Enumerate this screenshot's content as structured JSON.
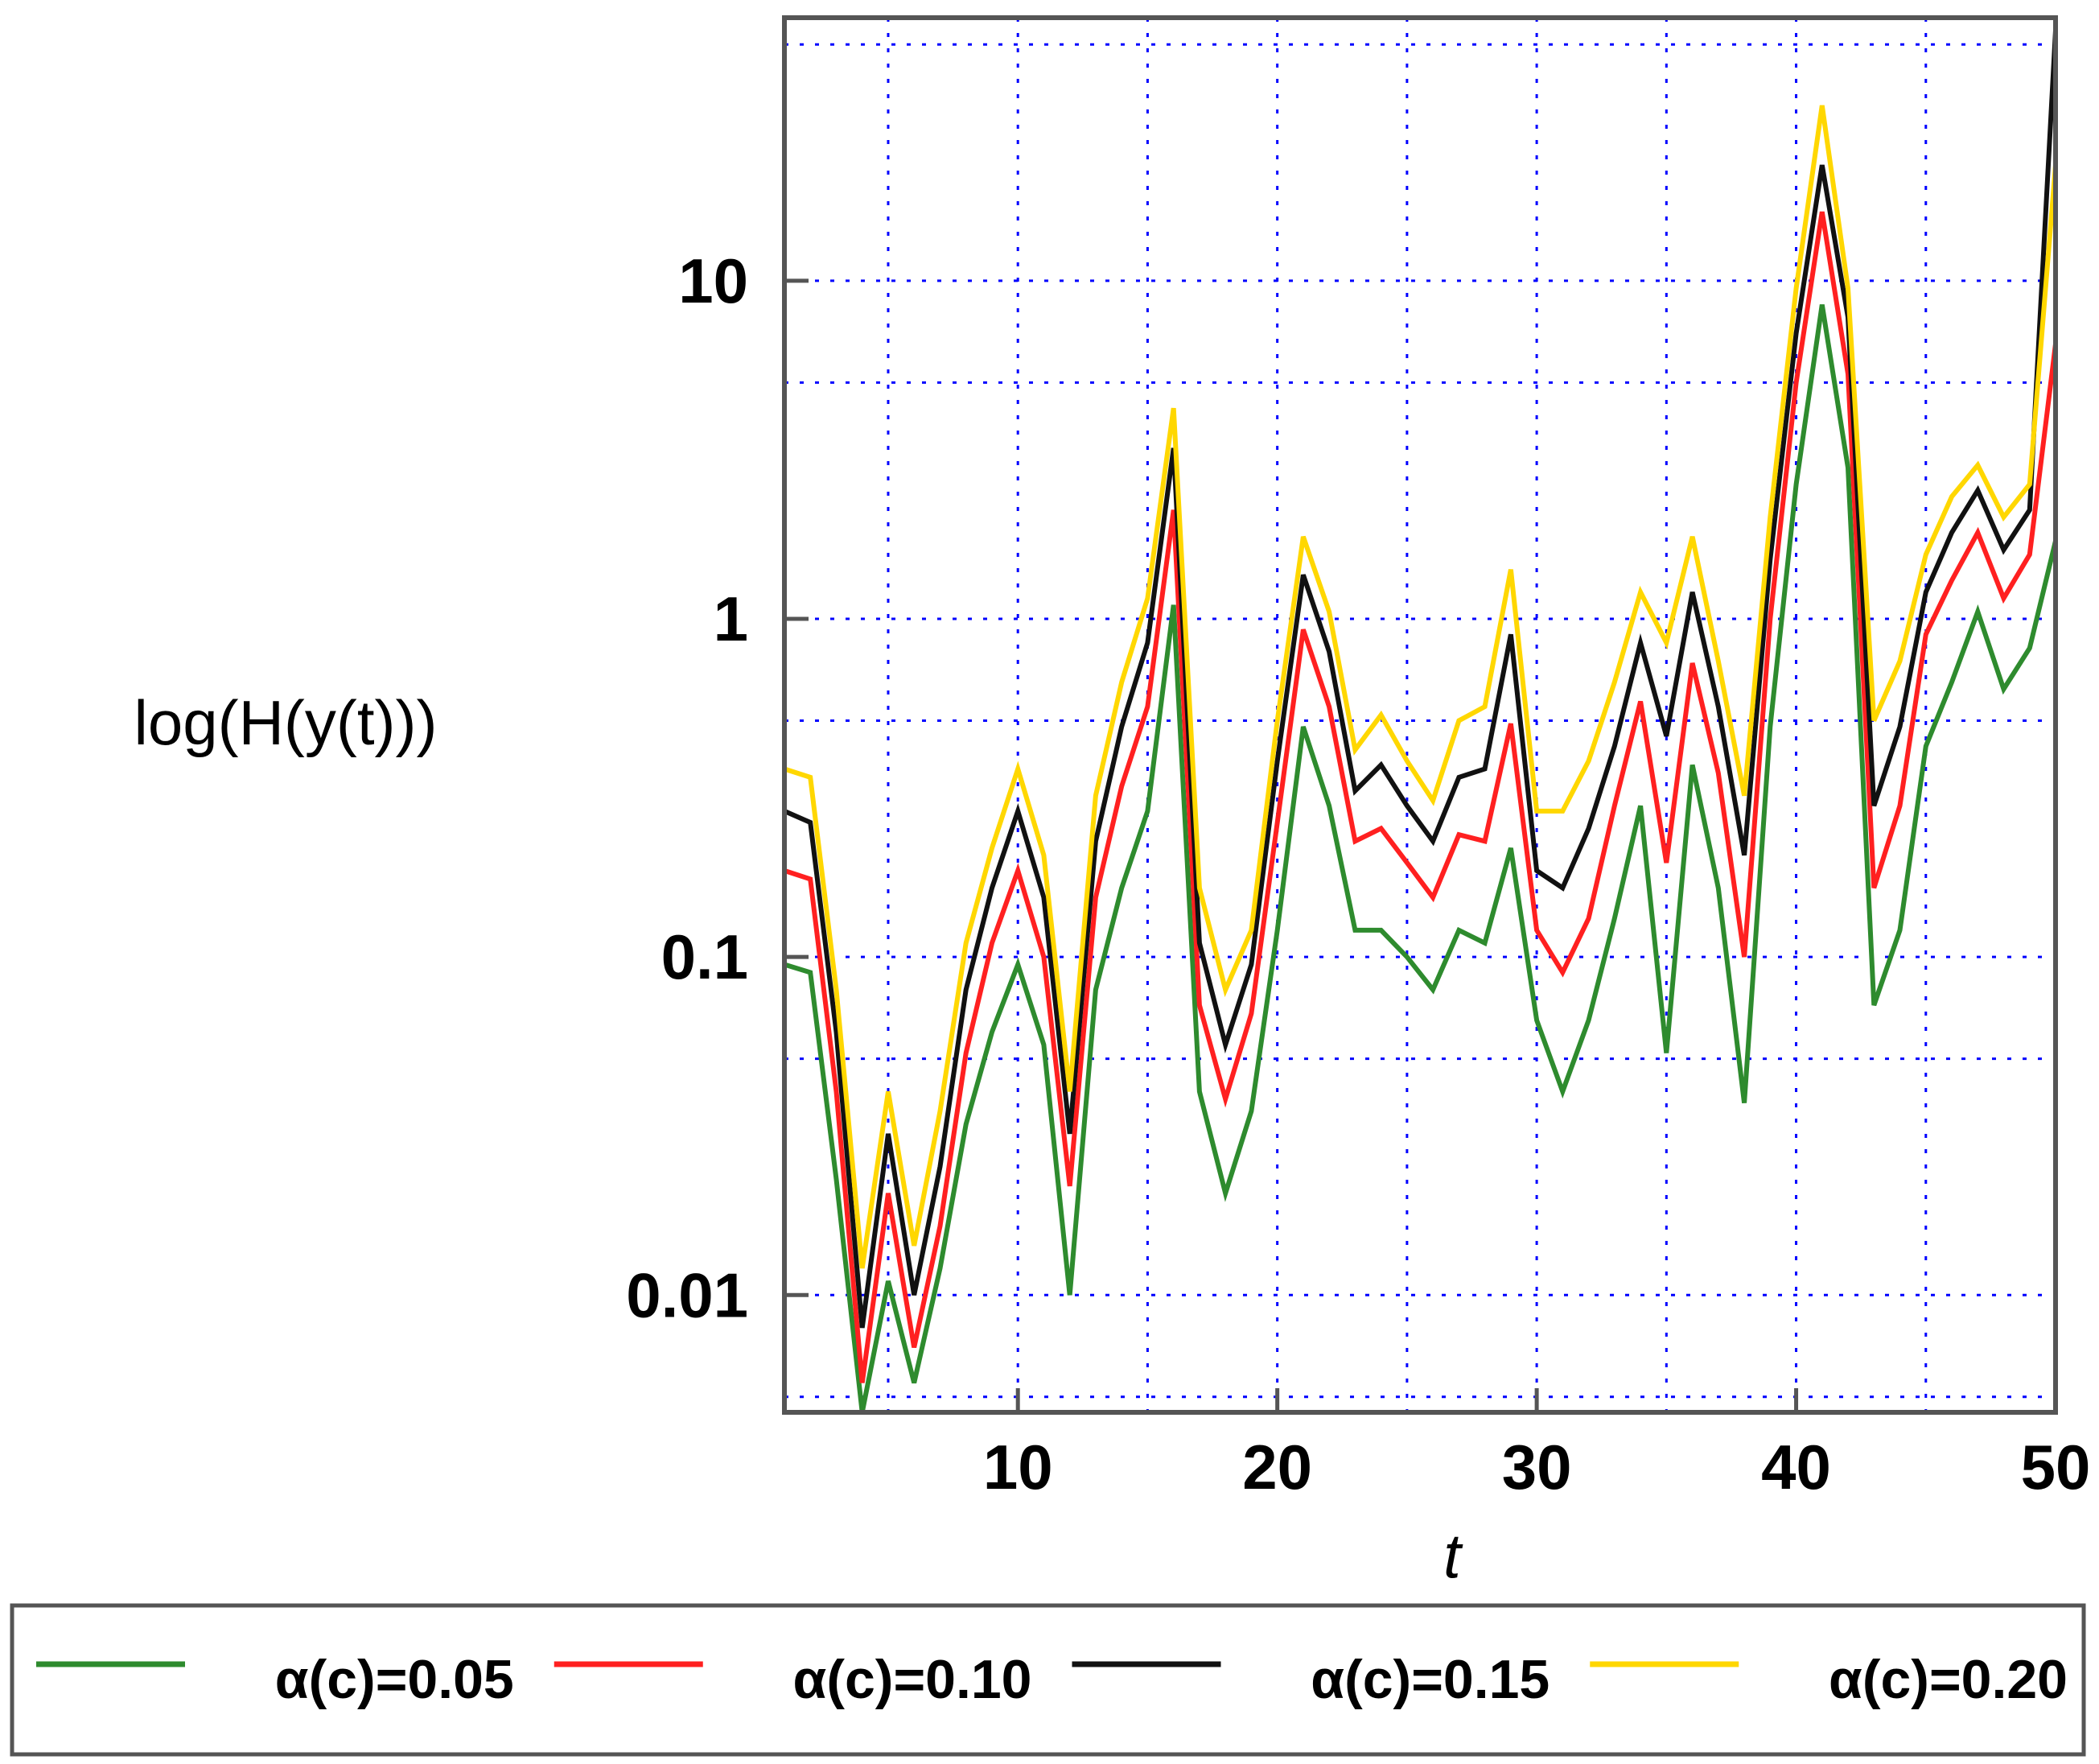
{
  "chart_data": {
    "type": "line",
    "title": "",
    "xlabel": "t",
    "ylabel": "log(H(y(t)))",
    "yscale": "log",
    "xlim": [
      1,
      50
    ],
    "ylim": [
      0.0045,
      60
    ],
    "x_ticks": [
      {
        "value": 10,
        "label": "10"
      },
      {
        "value": 20,
        "label": "20"
      },
      {
        "value": 30,
        "label": "30"
      },
      {
        "value": 40,
        "label": "40"
      },
      {
        "value": 50,
        "label": "50"
      }
    ],
    "y_ticks": [
      {
        "value": 0.01,
        "label": "0.01"
      },
      {
        "value": 0.1,
        "label": "0.1"
      },
      {
        "value": 1,
        "label": "1"
      },
      {
        "value": 10,
        "label": "10"
      }
    ],
    "x_gridlines": [
      5,
      10,
      15,
      20,
      25,
      30,
      35,
      40,
      45,
      50
    ],
    "y_gridlines": [
      0.005,
      0.01,
      0.05,
      0.1,
      0.5,
      1,
      5,
      10,
      50
    ],
    "grid": true,
    "grid_color": "#0000ff",
    "legend_position": "bottom",
    "x": [
      1,
      2,
      3,
      4,
      5,
      6,
      7,
      8,
      9,
      10,
      11,
      12,
      13,
      14,
      15,
      16,
      17,
      18,
      19,
      20,
      21,
      22,
      23,
      24,
      25,
      26,
      27,
      28,
      29,
      30,
      31,
      32,
      33,
      34,
      35,
      36,
      37,
      38,
      39,
      40,
      41,
      42,
      43,
      44,
      45,
      46,
      47,
      48,
      49,
      50
    ],
    "series": [
      {
        "name": "α(c)=0.05",
        "color": "#2e8b2e",
        "values": [
          0.095,
          0.09,
          0.022,
          0.0045,
          0.011,
          0.0055,
          0.012,
          0.032,
          0.06,
          0.095,
          0.055,
          0.01,
          0.08,
          0.16,
          0.27,
          1.1,
          0.04,
          0.02,
          0.035,
          0.12,
          0.48,
          0.28,
          0.12,
          0.12,
          0.1,
          0.08,
          0.12,
          0.11,
          0.21,
          0.065,
          0.04,
          0.065,
          0.13,
          0.28,
          0.052,
          0.37,
          0.16,
          0.037,
          0.48,
          2.5,
          8.5,
          2.8,
          0.072,
          0.12,
          0.42,
          0.65,
          1.05,
          0.62,
          0.82,
          1.7
        ]
      },
      {
        "name": "α(c)=0.10",
        "color": "#ff2020",
        "values": [
          0.18,
          0.17,
          0.04,
          0.0055,
          0.02,
          0.007,
          0.016,
          0.052,
          0.11,
          0.18,
          0.1,
          0.021,
          0.15,
          0.32,
          0.55,
          2.1,
          0.072,
          0.038,
          0.068,
          0.25,
          0.93,
          0.55,
          0.22,
          0.24,
          0.19,
          0.15,
          0.23,
          0.22,
          0.49,
          0.12,
          0.09,
          0.13,
          0.28,
          0.57,
          0.19,
          0.74,
          0.35,
          0.1,
          1.0,
          5.0,
          16.0,
          5.3,
          0.16,
          0.28,
          0.9,
          1.3,
          1.8,
          1.15,
          1.55,
          6.5
        ]
      },
      {
        "name": "α(c)=0.15",
        "color": "#111111",
        "values": [
          0.27,
          0.25,
          0.06,
          0.008,
          0.03,
          0.01,
          0.024,
          0.08,
          0.16,
          0.27,
          0.15,
          0.03,
          0.22,
          0.48,
          0.85,
          3.2,
          0.11,
          0.055,
          0.095,
          0.38,
          1.35,
          0.8,
          0.31,
          0.37,
          0.28,
          0.22,
          0.34,
          0.36,
          0.9,
          0.18,
          0.16,
          0.24,
          0.42,
          0.85,
          0.45,
          1.2,
          0.55,
          0.2,
          1.5,
          7.0,
          22.0,
          7.8,
          0.28,
          0.48,
          1.2,
          1.8,
          2.4,
          1.6,
          2.1,
          55.0
        ]
      },
      {
        "name": "α(c)=0.20",
        "color": "#ffd700",
        "values": [
          0.36,
          0.34,
          0.08,
          0.012,
          0.04,
          0.014,
          0.035,
          0.11,
          0.21,
          0.36,
          0.2,
          0.04,
          0.3,
          0.65,
          1.15,
          4.2,
          0.16,
          0.08,
          0.12,
          0.5,
          1.75,
          1.05,
          0.41,
          0.52,
          0.38,
          0.29,
          0.5,
          0.55,
          1.4,
          0.27,
          0.27,
          0.38,
          0.65,
          1.2,
          0.85,
          1.75,
          0.75,
          0.3,
          2.0,
          9.5,
          33.0,
          9.5,
          0.5,
          0.75,
          1.55,
          2.3,
          2.85,
          2.0,
          2.5,
          22.0
        ]
      }
    ]
  }
}
